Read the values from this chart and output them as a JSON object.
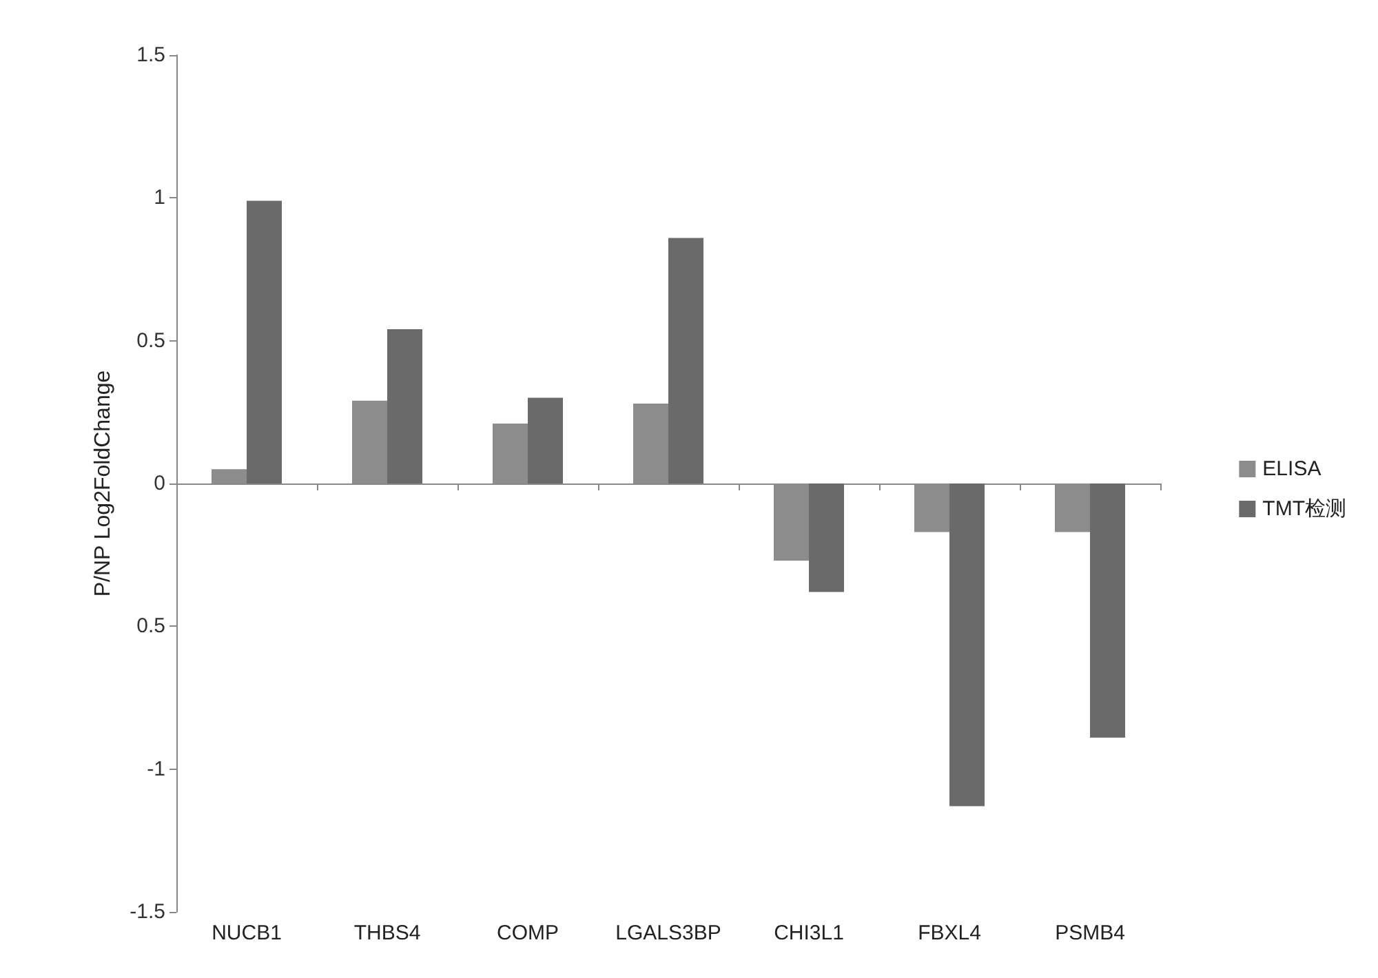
{
  "chart_data": {
    "type": "bar",
    "ylabel": "P/NP Log2FoldChange",
    "categories": [
      "NUCB1",
      "THBS4",
      "COMP",
      "LGALS3BP",
      "CHI3L1",
      "FBXL4",
      "PSMB4"
    ],
    "series": [
      {
        "name": "ELISA",
        "color": "#8c8c8c",
        "values": [
          0.05,
          0.29,
          0.21,
          0.28,
          -0.27,
          -0.17,
          -0.17
        ]
      },
      {
        "name": "TMT检测",
        "color": "#6a6a6a",
        "values": [
          0.99,
          0.54,
          0.3,
          0.86,
          -0.38,
          -1.13,
          -0.89
        ]
      }
    ],
    "ylim": [
      -1.5,
      1.5
    ],
    "yticks": [
      -1.5,
      -1,
      {
        "value": -0.5,
        "label": "0.5"
      },
      0,
      0.5,
      1,
      1.5
    ],
    "legend": "right"
  }
}
